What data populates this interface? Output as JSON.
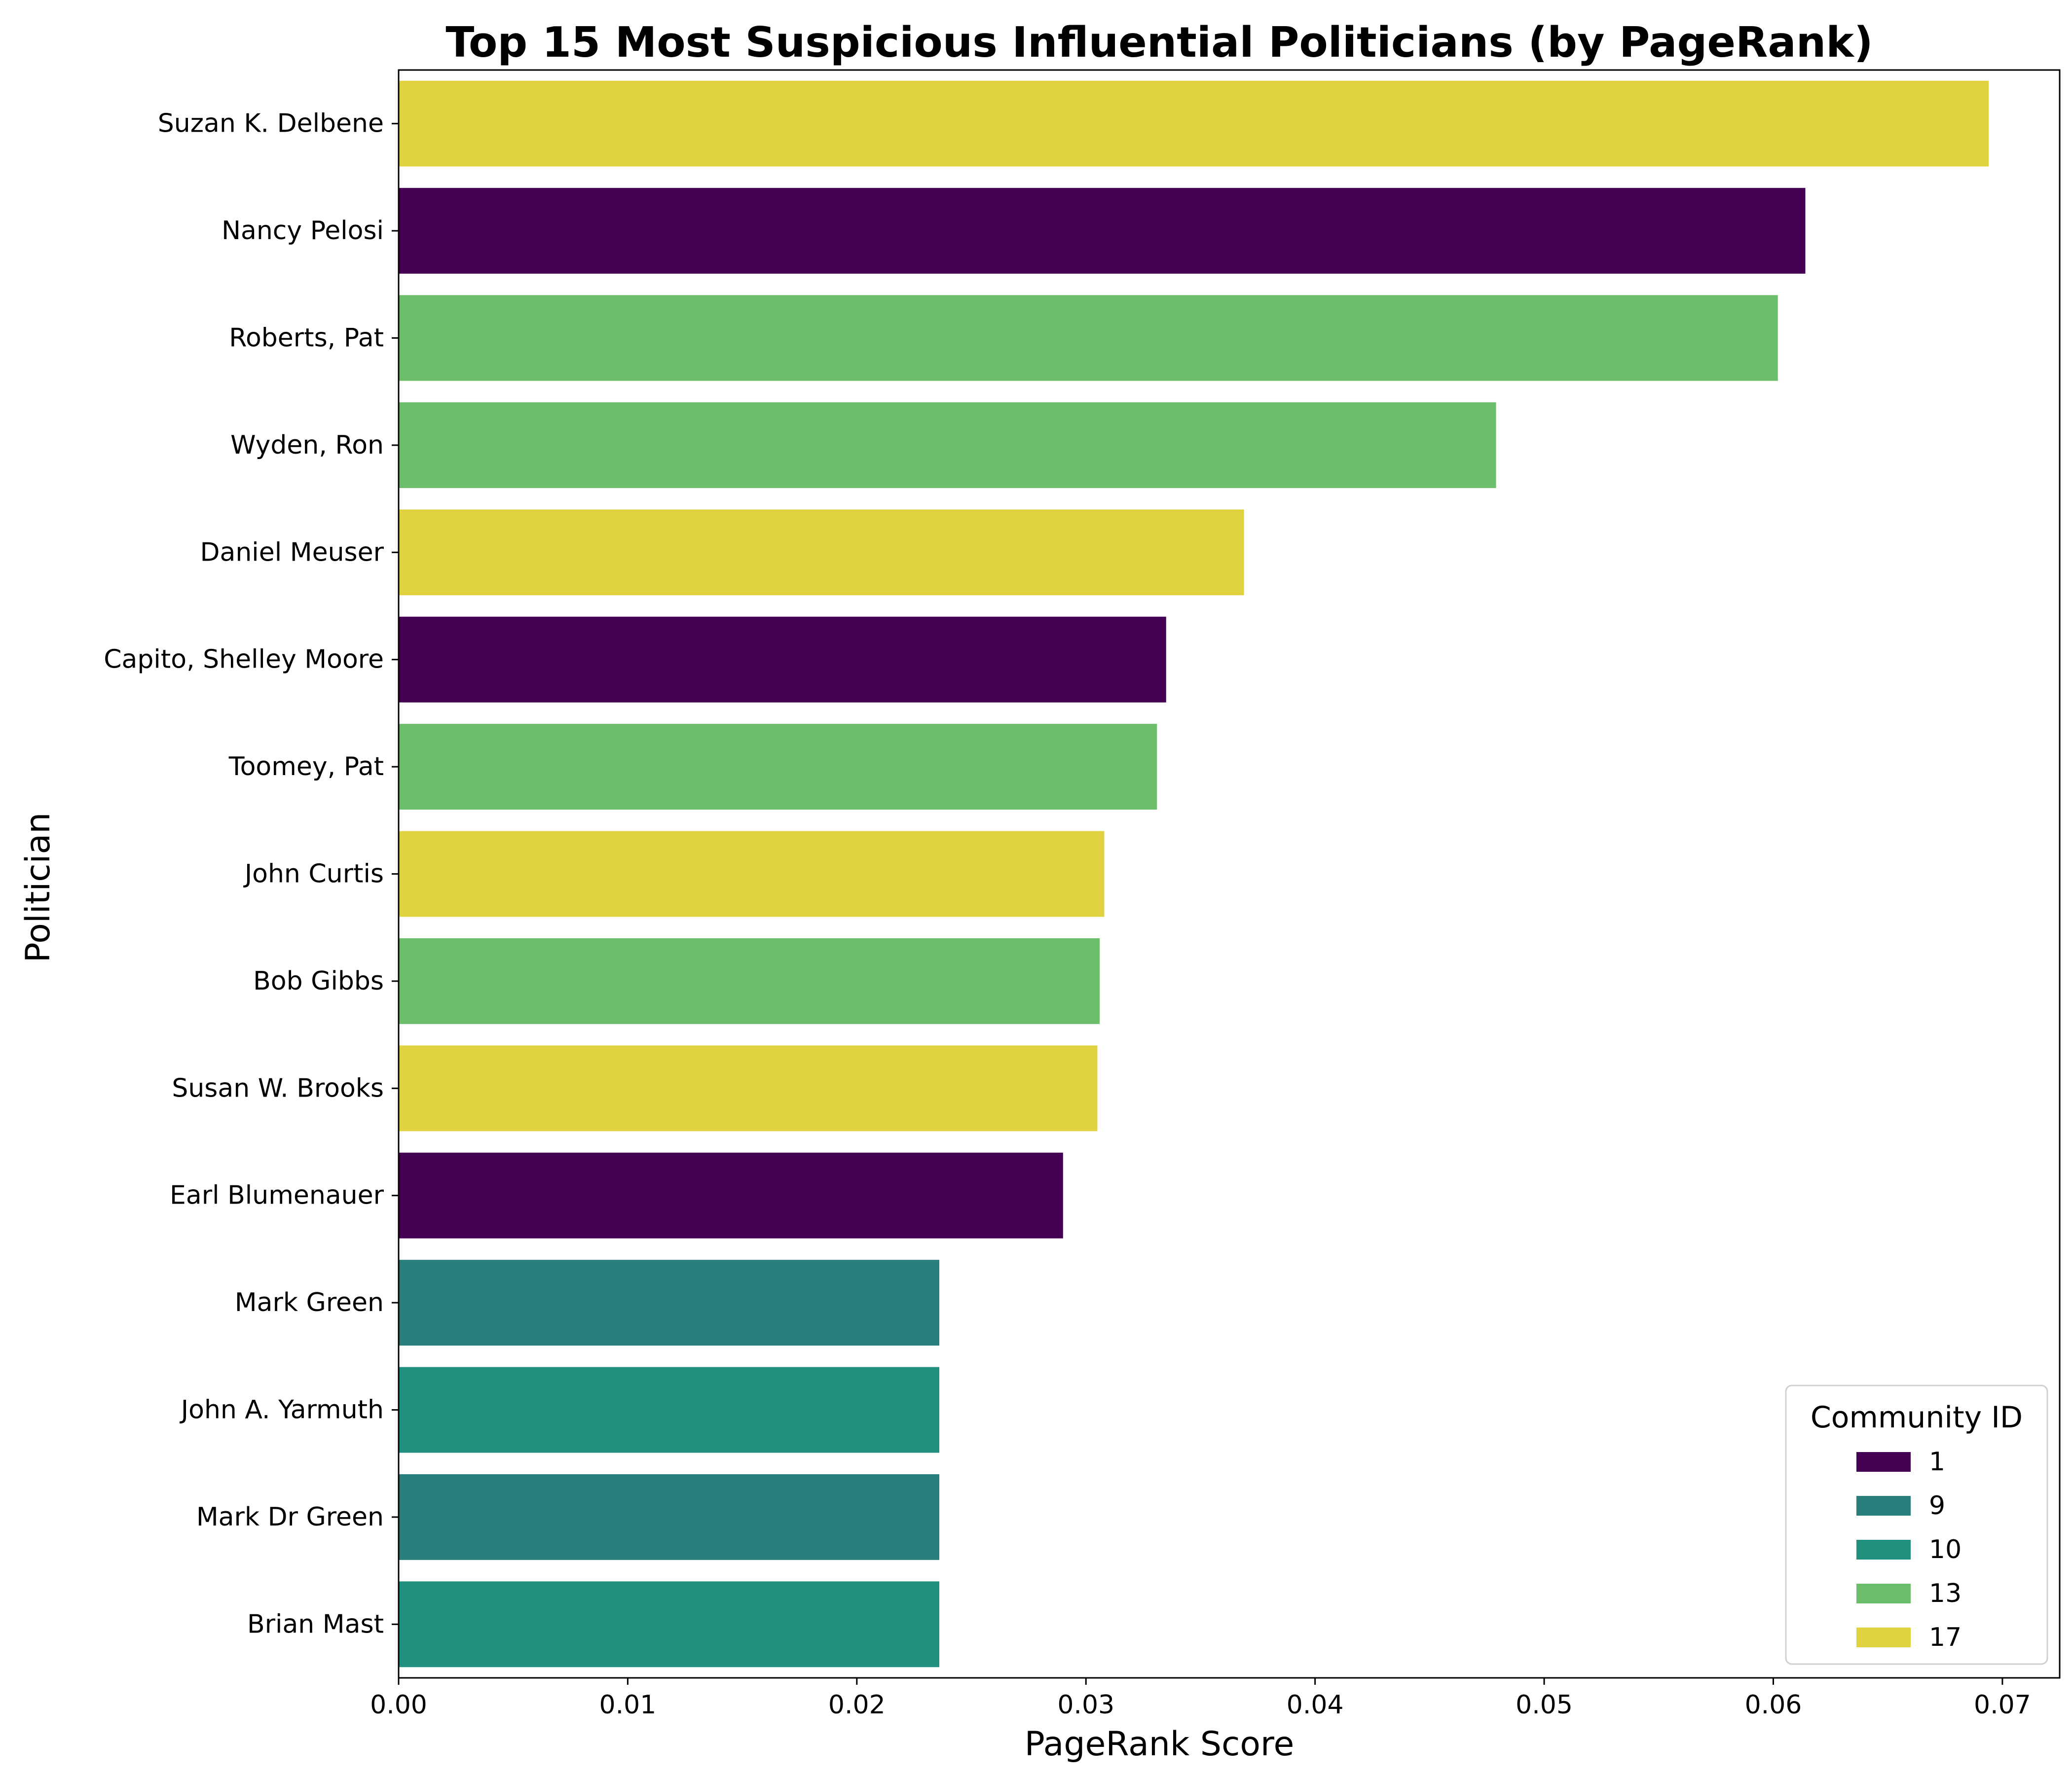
{
  "chart_data": {
    "type": "bar",
    "orientation": "horizontal",
    "title": "Top 15 Most Suspicious Influential Politicians (by PageRank)",
    "xlabel": "PageRank Score",
    "ylabel": "Politician",
    "xlim": [
      0,
      0.0725
    ],
    "xticks": [
      0.0,
      0.01,
      0.02,
      0.03,
      0.04,
      0.05,
      0.06,
      0.07
    ],
    "xtick_labels": [
      "0.00",
      "0.01",
      "0.02",
      "0.03",
      "0.04",
      "0.05",
      "0.06",
      "0.07"
    ],
    "grid": false,
    "legend": {
      "title": "Community ID",
      "placement": "lower-right",
      "entries": [
        {
          "label": "1",
          "color": "#440154"
        },
        {
          "label": "9",
          "color": "#2a7f7c"
        },
        {
          "label": "10",
          "color": "#22907f"
        },
        {
          "label": "13",
          "color": "#6cbd6c"
        },
        {
          "label": "17",
          "color": "#e1d340"
        }
      ]
    },
    "categories": [
      "Suzan K. Delbene",
      "Nancy Pelosi",
      "Roberts, Pat",
      "Wyden, Ron",
      "Daniel Meuser",
      "Capito, Shelley Moore",
      "Toomey, Pat",
      "John Curtis",
      "Bob Gibbs",
      "Susan W. Brooks",
      "Earl Blumenauer",
      "Mark Green",
      "John A. Yarmuth",
      "Mark Dr Green",
      "Brian Mast"
    ],
    "values": [
      0.0694,
      0.0614,
      0.0602,
      0.0479,
      0.0369,
      0.0335,
      0.0331,
      0.0308,
      0.0306,
      0.0305,
      0.029,
      0.0236,
      0.0236,
      0.0236,
      0.0236
    ],
    "community": [
      "17",
      "1",
      "13",
      "13",
      "17",
      "1",
      "13",
      "17",
      "13",
      "17",
      "1",
      "9",
      "10",
      "9",
      "10"
    ]
  }
}
